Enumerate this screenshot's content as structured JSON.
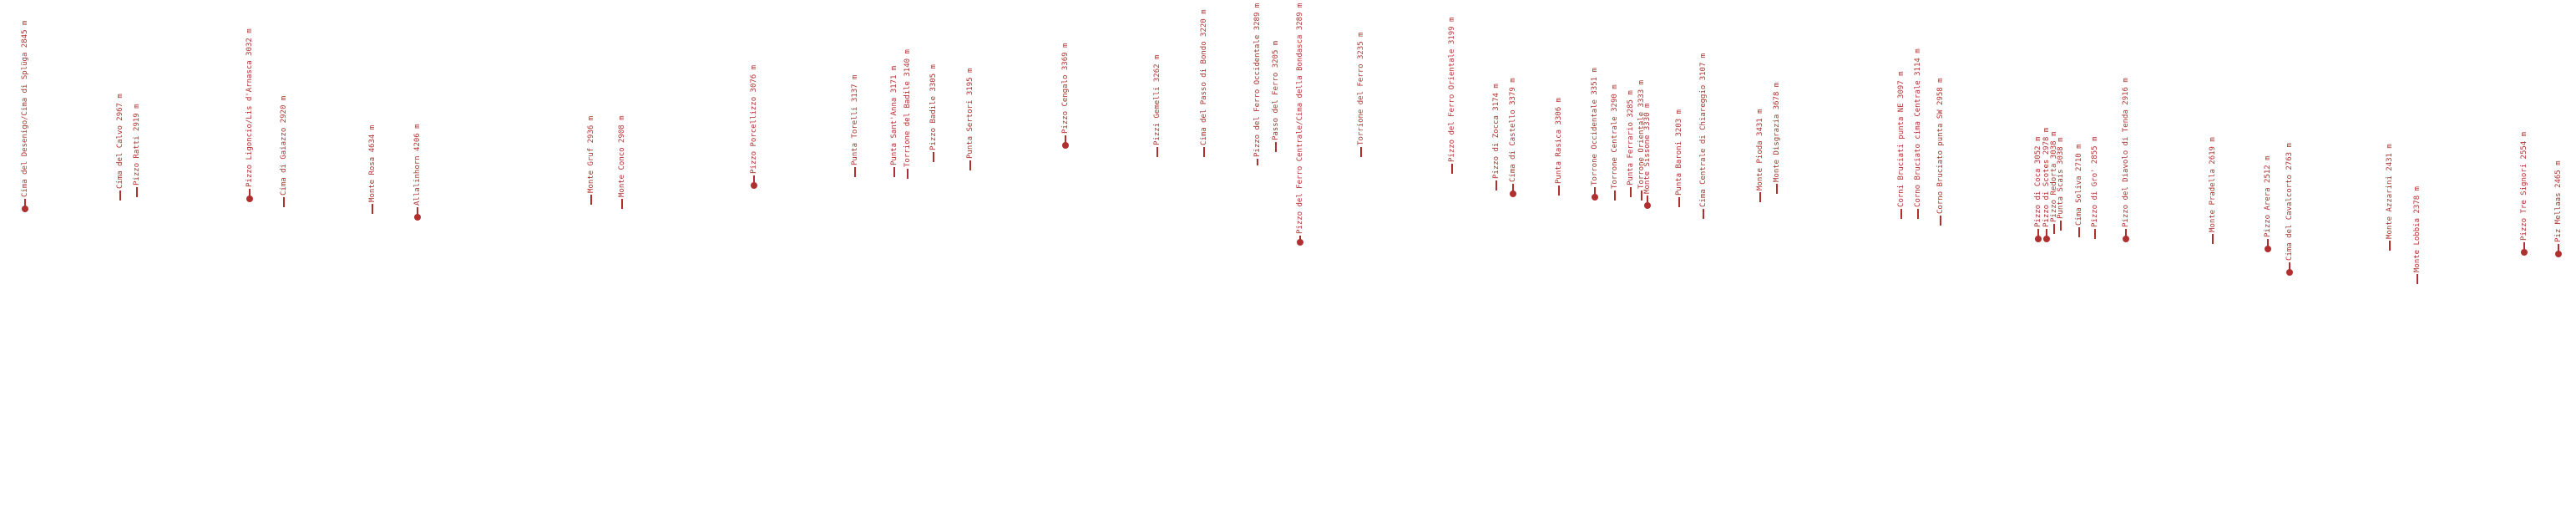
{
  "peaks": [
    {
      "label": "Cima del Desenigo/Cima di Splüga 2845 m",
      "dot": true
    },
    {
      "label": "Cima del Calvo 2967 m",
      "dot": false
    },
    {
      "label": "Pizzo Ratti 2919 m",
      "dot": false
    },
    {
      "label": "Pizzo Ligoncio/Lis d'Arnasca 3032 m",
      "dot": true
    },
    {
      "label": "Cima di Gaiazzo 2920 m",
      "dot": false
    },
    {
      "label": "Monte Rosa 4634 m",
      "dot": false
    },
    {
      "label": "Allalinhorn 4206 m",
      "dot": true
    },
    {
      "label": "Monte Gruf 2936 m",
      "dot": false
    },
    {
      "label": "Monte Conco 2908 m",
      "dot": false
    },
    {
      "label": "Pizzo Porcellizzo 3076 m",
      "dot": true
    },
    {
      "label": "Punta Torelli 3137 m",
      "dot": false
    },
    {
      "label": "Punta Sant'Anna 3171 m",
      "dot": false
    },
    {
      "label": "Torrione del Badile 3140 m",
      "dot": false
    },
    {
      "label": "Pizzo Badile 3305 m",
      "dot": false
    },
    {
      "label": "Punta Sertori 3195 m",
      "dot": false
    },
    {
      "label": "Pizzo Cengalo 3369 m",
      "dot": true
    },
    {
      "label": "Pizzi Gemelli 3262 m",
      "dot": false
    },
    {
      "label": "Cima del Passo di Bondo 3220 m",
      "dot": false
    },
    {
      "label": "Pizzo del Ferro Occidentale 3289 m",
      "dot": false
    },
    {
      "label": "Passo del Ferro 3205 m",
      "dot": false
    },
    {
      "label": "Pizzo del Ferro Centrale/Cima della Bondasca 3289 m",
      "dot": true
    },
    {
      "label": "Torrione del Ferro 3235 m",
      "dot": false
    },
    {
      "label": "Pizzo del Ferro Orientale 3199 m",
      "dot": false
    },
    {
      "label": "Pizzo di Zocca 3174 m",
      "dot": false
    },
    {
      "label": "Cima di Castello 3379 m",
      "dot": true
    },
    {
      "label": "Punta Rasica 3306 m",
      "dot": false
    },
    {
      "label": "Torrone Occidentale 3351 m",
      "dot": true
    },
    {
      "label": "Torrone Centrale 3290 m",
      "dot": false
    },
    {
      "label": "Punta Ferrario 3285 m",
      "dot": false
    },
    {
      "label": "Torrone Orientale 3333 m",
      "dot": false
    },
    {
      "label": "Monte Sissone 3330 m",
      "dot": true
    },
    {
      "label": "Punta Baroni 3203 m",
      "dot": false
    },
    {
      "label": "Cima Centrale di Chiareggio 3107 m",
      "dot": false
    },
    {
      "label": "Monte Pioda 3431 m",
      "dot": false
    },
    {
      "label": "Monte Disgrazia 3678 m",
      "dot": false
    },
    {
      "label": "Corni Bruciati punta NE 3097 m",
      "dot": false
    },
    {
      "label": "Corno Bruciato cima Centrale 3114 m",
      "dot": false
    },
    {
      "label": "Corno Bruciato punta SW 2958 m",
      "dot": false
    },
    {
      "label": "Pizzo di Coca 3052 m",
      "dot": true
    },
    {
      "label": "Pizzo di Scotes 2978 m",
      "dot": true
    },
    {
      "label": "Pizzo Redorta 3038 m",
      "dot": false
    },
    {
      "label": "Punta Scais 3038 m",
      "dot": false
    },
    {
      "label": "Cima Soliva 2710 m",
      "dot": false
    },
    {
      "label": "Pizzo di Gro' 2855 m",
      "dot": false
    },
    {
      "label": "Pizzo del Diavolo di Tenda 2916 m",
      "dot": true
    },
    {
      "label": "Monte Pradella 2619 m",
      "dot": false
    },
    {
      "label": "Pizzo Arera 2512 m",
      "dot": true
    },
    {
      "label": "Cima del Cavalcorto 2763 m",
      "dot": true
    },
    {
      "label": "Monte Azzarini 2431 m",
      "dot": false
    },
    {
      "label": "Monte Lobbia 2378 m",
      "dot": false
    },
    {
      "label": "Pizzo Tre Signori 2554 m",
      "dot": true
    },
    {
      "label": "Piz Mellaas 2465 m",
      "dot": true
    }
  ]
}
